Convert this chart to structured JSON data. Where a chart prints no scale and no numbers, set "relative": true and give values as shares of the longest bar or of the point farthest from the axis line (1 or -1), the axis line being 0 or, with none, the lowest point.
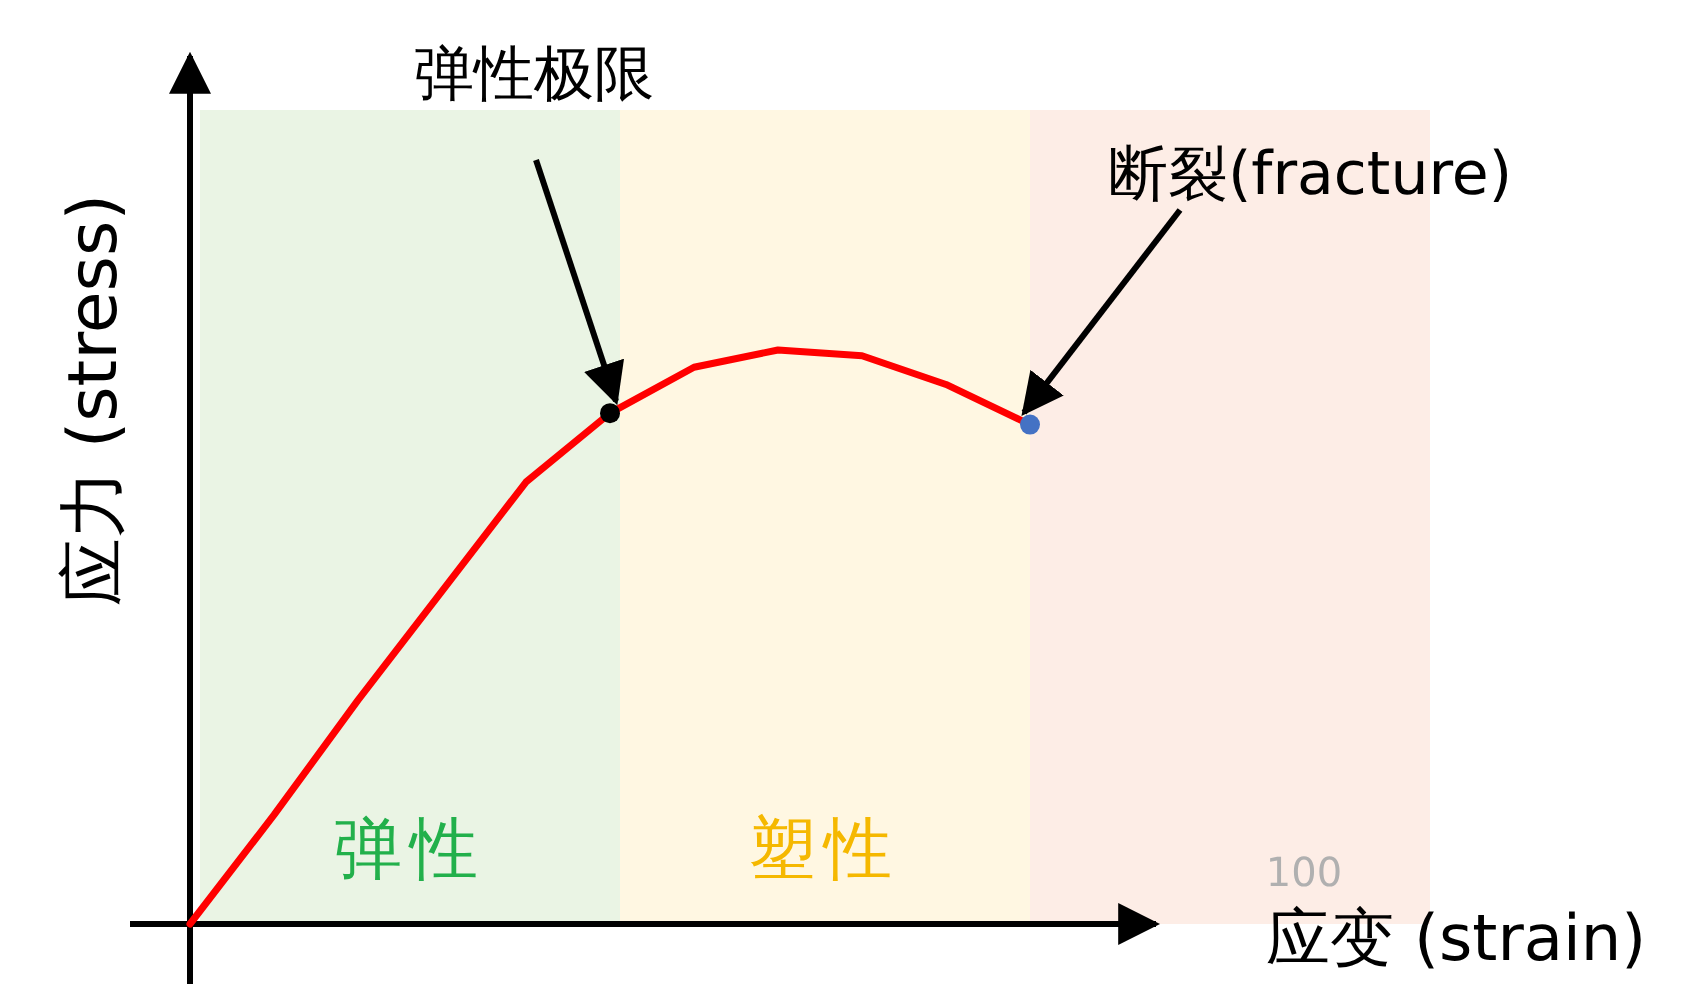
{
  "chart_data": {
    "type": "line",
    "relative": true,
    "ylabel": "应力 (stress)",
    "xlabel": "应变 (strain)",
    "categories": [
      null,
      null,
      null,
      null,
      null,
      null,
      null,
      null,
      null,
      null,
      null
    ],
    "series": [
      {
        "color": "#ff0000",
        "values": [
          0,
          0.19,
          0.39,
          0.58,
          0.77,
          0.89,
          0.97,
          1.0,
          0.99,
          0.94,
          0.87
        ]
      }
    ],
    "annotations": [
      "弹性极限",
      "断裂(fracture)",
      "弹性",
      "塑性",
      "100"
    ],
    "grid": false
  }
}
